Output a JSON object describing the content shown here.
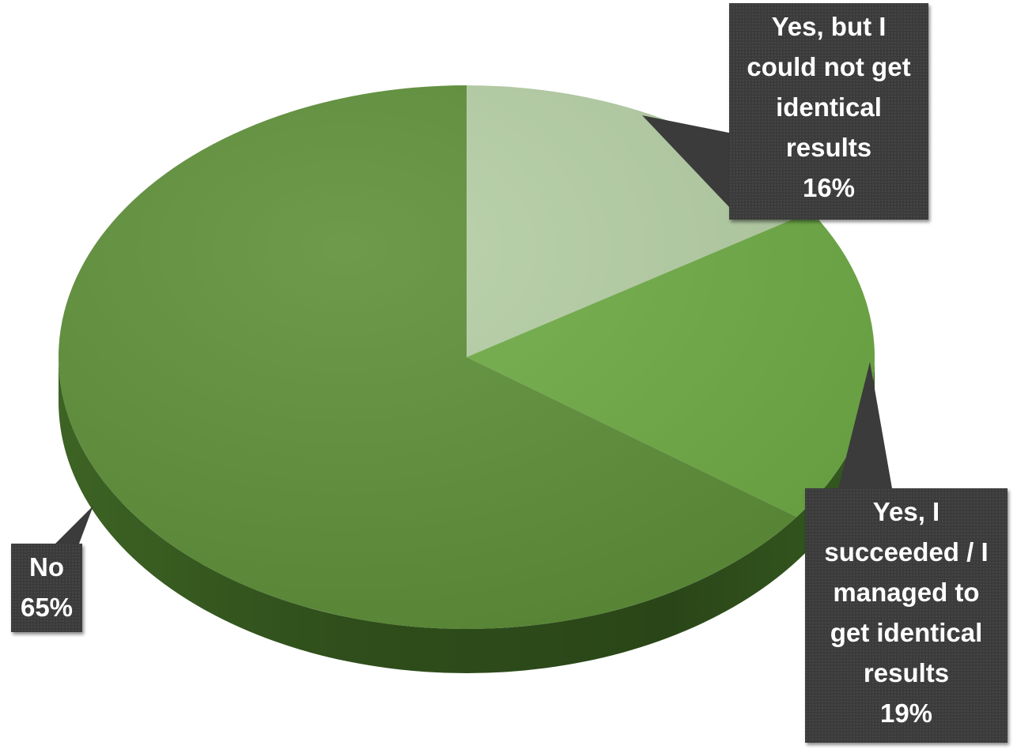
{
  "chart_data": {
    "type": "pie",
    "title": "",
    "style": "3d",
    "slices": [
      {
        "label_lines": [
          "Yes, but I",
          "could not get",
          "identical",
          "results"
        ],
        "value": 16,
        "value_label": "16%",
        "color": "#b5cfa5"
      },
      {
        "label_lines": [
          "Yes, I",
          "succeeded / I",
          "managed to",
          "get identical",
          "results"
        ],
        "value": 19,
        "value_label": "19%",
        "color": "#6fac45"
      },
      {
        "label_lines": [
          "No"
        ],
        "value": 65,
        "value_label": "65%",
        "color": "#5e8f38"
      }
    ],
    "start_angle_deg": 90,
    "direction": "clockwise",
    "callout_color": "#3b3b3b",
    "callout_text_color": "#ffffff"
  }
}
